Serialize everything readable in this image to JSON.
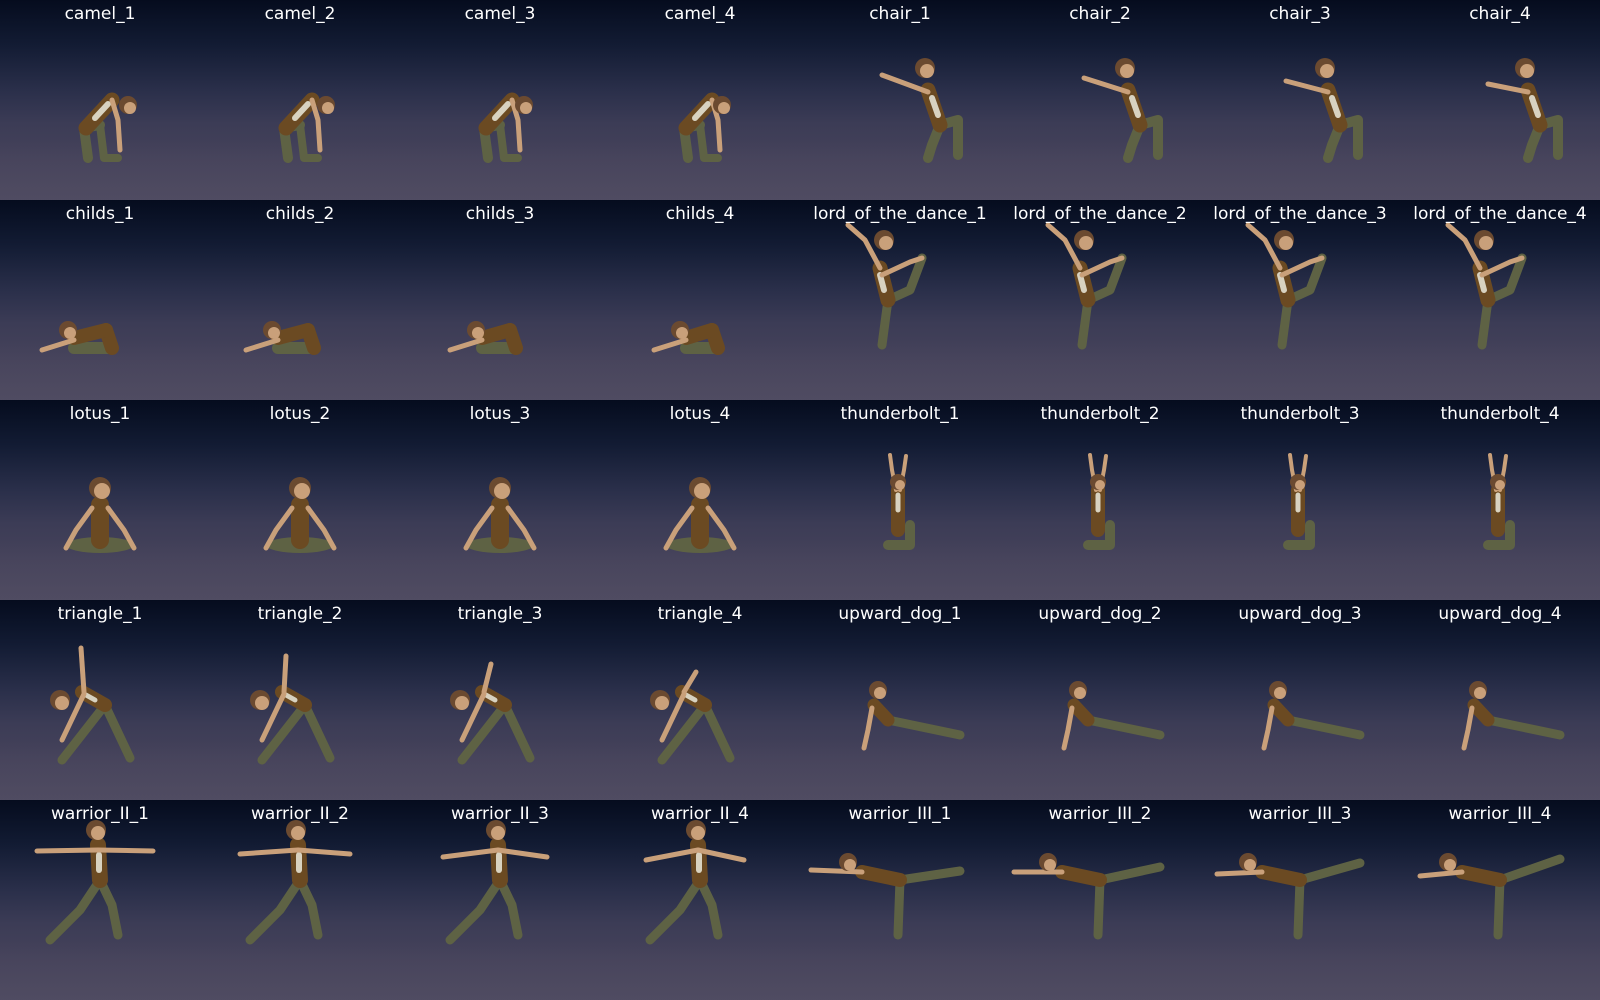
{
  "grid": {
    "rows": 5,
    "columns": 8,
    "cells": [
      {
        "label": "camel_1",
        "pose": "camel"
      },
      {
        "label": "camel_2",
        "pose": "camel"
      },
      {
        "label": "camel_3",
        "pose": "camel"
      },
      {
        "label": "camel_4",
        "pose": "camel"
      },
      {
        "label": "chair_1",
        "pose": "chair"
      },
      {
        "label": "chair_2",
        "pose": "chair"
      },
      {
        "label": "chair_3",
        "pose": "chair"
      },
      {
        "label": "chair_4",
        "pose": "chair"
      },
      {
        "label": "childs_1",
        "pose": "childs"
      },
      {
        "label": "childs_2",
        "pose": "childs"
      },
      {
        "label": "childs_3",
        "pose": "childs"
      },
      {
        "label": "childs_4",
        "pose": "childs"
      },
      {
        "label": "lord_of_the_dance_1",
        "pose": "lord_of_the_dance"
      },
      {
        "label": "lord_of_the_dance_2",
        "pose": "lord_of_the_dance"
      },
      {
        "label": "lord_of_the_dance_3",
        "pose": "lord_of_the_dance"
      },
      {
        "label": "lord_of_the_dance_4",
        "pose": "lord_of_the_dance"
      },
      {
        "label": "lotus_1",
        "pose": "lotus"
      },
      {
        "label": "lotus_2",
        "pose": "lotus"
      },
      {
        "label": "lotus_3",
        "pose": "lotus"
      },
      {
        "label": "lotus_4",
        "pose": "lotus"
      },
      {
        "label": "thunderbolt_1",
        "pose": "thunderbolt"
      },
      {
        "label": "thunderbolt_2",
        "pose": "thunderbolt"
      },
      {
        "label": "thunderbolt_3",
        "pose": "thunderbolt"
      },
      {
        "label": "thunderbolt_4",
        "pose": "thunderbolt"
      },
      {
        "label": "triangle_1",
        "pose": "triangle"
      },
      {
        "label": "triangle_2",
        "pose": "triangle"
      },
      {
        "label": "triangle_3",
        "pose": "triangle"
      },
      {
        "label": "triangle_4",
        "pose": "triangle"
      },
      {
        "label": "upward_dog_1",
        "pose": "upward_dog"
      },
      {
        "label": "upward_dog_2",
        "pose": "upward_dog"
      },
      {
        "label": "upward_dog_3",
        "pose": "upward_dog"
      },
      {
        "label": "upward_dog_4",
        "pose": "upward_dog"
      },
      {
        "label": "warrior_II_1",
        "pose": "warrior_II"
      },
      {
        "label": "warrior_II_2",
        "pose": "warrior_II"
      },
      {
        "label": "warrior_II_3",
        "pose": "warrior_II"
      },
      {
        "label": "warrior_II_4",
        "pose": "warrior_II"
      },
      {
        "label": "warrior_III_1",
        "pose": "warrior_III"
      },
      {
        "label": "warrior_III_2",
        "pose": "warrior_III"
      },
      {
        "label": "warrior_III_3",
        "pose": "warrior_III"
      },
      {
        "label": "warrior_III_4",
        "pose": "warrior_III"
      }
    ]
  },
  "colors": {
    "skin": "#c9a07a",
    "hair": "#6b4a30",
    "shirt": "#6b4a22",
    "shirt_light": "#d8d2c0",
    "pants": "#5e6244",
    "label": "#ffffff"
  }
}
